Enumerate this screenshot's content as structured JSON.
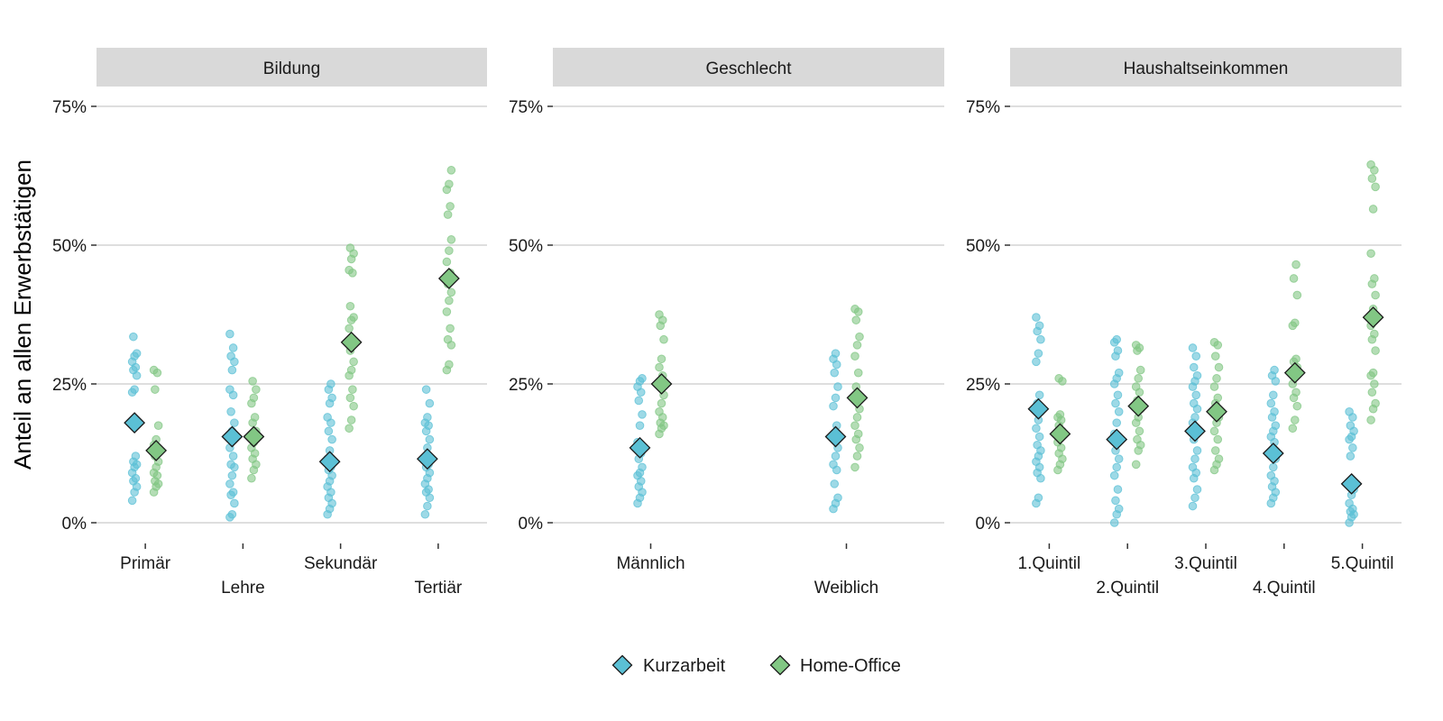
{
  "chart_data": {
    "type": "scatter",
    "ylabel": "Anteil an allen Erwerbstätigen",
    "ylim": [
      0,
      0.8
    ],
    "yticks": [
      0,
      0.25,
      0.5,
      0.75
    ],
    "ytick_labels": [
      "0%",
      "25%",
      "50%",
      "75%"
    ],
    "grid": "horizontal major",
    "legend_position": "bottom",
    "series": [
      {
        "name": "Kurzarbeit",
        "key": "kurz",
        "color": "#5BC0D5"
      },
      {
        "name": "Home-Office",
        "key": "home",
        "color": "#82C784"
      }
    ],
    "panels": [
      {
        "strip": "Bildung",
        "categories": [
          {
            "label": "Primär",
            "mean": {
              "kurz": 0.18,
              "home": 0.13
            },
            "points": {
              "kurz": [
                0.04,
                0.055,
                0.065,
                0.075,
                0.08,
                0.09,
                0.1,
                0.105,
                0.11,
                0.12,
                0.235,
                0.24,
                0.265,
                0.275,
                0.28,
                0.29,
                0.3,
                0.305,
                0.335
              ],
              "home": [
                0.055,
                0.065,
                0.07,
                0.075,
                0.085,
                0.09,
                0.1,
                0.11,
                0.12,
                0.13,
                0.14,
                0.15,
                0.175,
                0.24,
                0.27,
                0.275
              ]
            }
          },
          {
            "label": "Lehre",
            "mean": {
              "kurz": 0.155,
              "home": 0.155
            },
            "points": {
              "kurz": [
                0.01,
                0.015,
                0.035,
                0.05,
                0.055,
                0.07,
                0.085,
                0.1,
                0.105,
                0.12,
                0.135,
                0.165,
                0.18,
                0.2,
                0.23,
                0.24,
                0.275,
                0.29,
                0.3,
                0.315,
                0.34
              ],
              "home": [
                0.08,
                0.095,
                0.105,
                0.115,
                0.125,
                0.135,
                0.145,
                0.165,
                0.18,
                0.19,
                0.215,
                0.225,
                0.24,
                0.255
              ]
            }
          },
          {
            "label": "Sekundär",
            "mean": {
              "kurz": 0.11,
              "home": 0.325
            },
            "points": {
              "kurz": [
                0.015,
                0.025,
                0.035,
                0.045,
                0.055,
                0.065,
                0.075,
                0.085,
                0.095,
                0.1,
                0.115,
                0.13,
                0.15,
                0.165,
                0.18,
                0.19,
                0.215,
                0.225,
                0.24,
                0.25
              ],
              "home": [
                0.17,
                0.185,
                0.21,
                0.225,
                0.24,
                0.265,
                0.275,
                0.29,
                0.31,
                0.33,
                0.35,
                0.365,
                0.37,
                0.39,
                0.45,
                0.455,
                0.475,
                0.485,
                0.495
              ]
            }
          },
          {
            "label": "Tertiär",
            "mean": {
              "kurz": 0.115,
              "home": 0.44
            },
            "points": {
              "kurz": [
                0.015,
                0.03,
                0.045,
                0.055,
                0.06,
                0.07,
                0.08,
                0.09,
                0.1,
                0.105,
                0.115,
                0.135,
                0.15,
                0.165,
                0.175,
                0.18,
                0.19,
                0.215,
                0.24
              ],
              "home": [
                0.275,
                0.285,
                0.32,
                0.33,
                0.35,
                0.38,
                0.4,
                0.415,
                0.43,
                0.45,
                0.47,
                0.49,
                0.51,
                0.555,
                0.57,
                0.6,
                0.61,
                0.635
              ]
            }
          }
        ]
      },
      {
        "strip": "Geschlecht",
        "categories": [
          {
            "label": "Männlich",
            "mean": {
              "kurz": 0.135,
              "home": 0.25
            },
            "points": {
              "kurz": [
                0.035,
                0.045,
                0.055,
                0.065,
                0.075,
                0.085,
                0.09,
                0.1,
                0.115,
                0.125,
                0.145,
                0.175,
                0.195,
                0.22,
                0.235,
                0.245,
                0.255,
                0.26
              ],
              "home": [
                0.16,
                0.17,
                0.175,
                0.18,
                0.19,
                0.2,
                0.215,
                0.23,
                0.25,
                0.265,
                0.28,
                0.295,
                0.33,
                0.355,
                0.365,
                0.375
              ]
            }
          },
          {
            "label": "Weiblich",
            "mean": {
              "kurz": 0.155,
              "home": 0.225
            },
            "points": {
              "kurz": [
                0.025,
                0.035,
                0.045,
                0.07,
                0.095,
                0.105,
                0.12,
                0.135,
                0.155,
                0.175,
                0.21,
                0.225,
                0.245,
                0.27,
                0.285,
                0.295,
                0.305
              ],
              "home": [
                0.1,
                0.12,
                0.135,
                0.15,
                0.16,
                0.175,
                0.19,
                0.205,
                0.245,
                0.27,
                0.3,
                0.32,
                0.335,
                0.365,
                0.38,
                0.385
              ]
            }
          }
        ]
      },
      {
        "strip": "Haushaltseinkommen",
        "categories": [
          {
            "label": "1.Quintil",
            "mean": {
              "kurz": 0.205,
              "home": 0.16
            },
            "points": {
              "kurz": [
                0.035,
                0.045,
                0.08,
                0.09,
                0.1,
                0.11,
                0.12,
                0.13,
                0.14,
                0.155,
                0.17,
                0.185,
                0.2,
                0.215,
                0.23,
                0.29,
                0.305,
                0.33,
                0.345,
                0.355,
                0.37
              ],
              "home": [
                0.095,
                0.105,
                0.115,
                0.125,
                0.135,
                0.145,
                0.155,
                0.165,
                0.175,
                0.185,
                0.19,
                0.195,
                0.255,
                0.26
              ]
            }
          },
          {
            "label": "2.Quintil",
            "mean": {
              "kurz": 0.15,
              "home": 0.21
            },
            "points": {
              "kurz": [
                0.0,
                0.015,
                0.025,
                0.04,
                0.06,
                0.085,
                0.1,
                0.115,
                0.13,
                0.145,
                0.16,
                0.18,
                0.2,
                0.215,
                0.23,
                0.25,
                0.26,
                0.27,
                0.3,
                0.31,
                0.325,
                0.33
              ],
              "home": [
                0.105,
                0.13,
                0.14,
                0.15,
                0.165,
                0.18,
                0.19,
                0.205,
                0.22,
                0.235,
                0.245,
                0.26,
                0.275,
                0.31,
                0.315,
                0.32
              ]
            }
          },
          {
            "label": "3.Quintil",
            "mean": {
              "kurz": 0.165,
              "home": 0.2
            },
            "points": {
              "kurz": [
                0.03,
                0.045,
                0.06,
                0.08,
                0.09,
                0.1,
                0.115,
                0.13,
                0.15,
                0.165,
                0.18,
                0.19,
                0.205,
                0.215,
                0.23,
                0.245,
                0.255,
                0.265,
                0.28,
                0.3,
                0.315
              ],
              "home": [
                0.095,
                0.105,
                0.115,
                0.13,
                0.15,
                0.165,
                0.18,
                0.19,
                0.215,
                0.225,
                0.245,
                0.26,
                0.28,
                0.3,
                0.32,
                0.325
              ]
            }
          },
          {
            "label": "4.Quintil",
            "mean": {
              "kurz": 0.125,
              "home": 0.27
            },
            "points": {
              "kurz": [
                0.035,
                0.045,
                0.055,
                0.065,
                0.075,
                0.085,
                0.1,
                0.115,
                0.13,
                0.145,
                0.155,
                0.165,
                0.175,
                0.19,
                0.2,
                0.215,
                0.23,
                0.255,
                0.265,
                0.275
              ],
              "home": [
                0.17,
                0.185,
                0.21,
                0.225,
                0.235,
                0.25,
                0.265,
                0.28,
                0.29,
                0.295,
                0.355,
                0.36,
                0.41,
                0.44,
                0.465
              ]
            }
          },
          {
            "label": "5.Quintil",
            "mean": {
              "kurz": 0.07,
              "home": 0.37
            },
            "points": {
              "kurz": [
                0.0,
                0.01,
                0.015,
                0.02,
                0.025,
                0.035,
                0.05,
                0.06,
                0.12,
                0.135,
                0.15,
                0.155,
                0.165,
                0.175,
                0.19,
                0.2
              ],
              "home": [
                0.185,
                0.205,
                0.215,
                0.235,
                0.25,
                0.265,
                0.27,
                0.31,
                0.33,
                0.34,
                0.355,
                0.385,
                0.41,
                0.43,
                0.44,
                0.485,
                0.565,
                0.605,
                0.62,
                0.635,
                0.645
              ]
            }
          }
        ]
      }
    ]
  }
}
